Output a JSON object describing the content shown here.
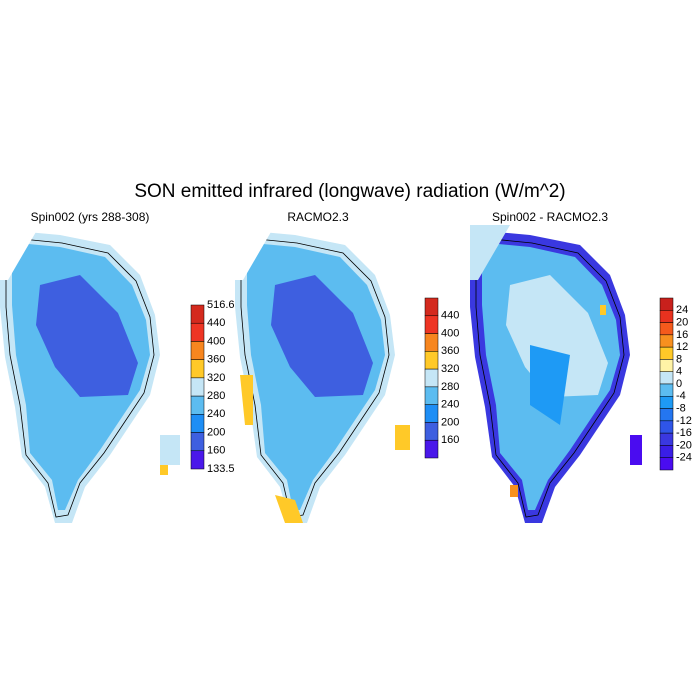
{
  "title": "SON emitted infrared (longwave) radiation (W/m^2)",
  "panels": [
    {
      "title": "Spin002 (yrs 288-308)",
      "colorbar": {
        "labels": [
          "516.6",
          "440",
          "400",
          "360",
          "320",
          "280",
          "240",
          "200",
          "160",
          "133.5"
        ],
        "colors": [
          "#d42a1e",
          "#ee3524",
          "#f7861f",
          "#ffc928",
          "#c5e6f6",
          "#5cbcf0",
          "#1e8ef5",
          "#3e5fe0",
          "#4a18ea"
        ]
      }
    },
    {
      "title": "RACMO2.3",
      "colorbar": {
        "labels": [
          "440",
          "400",
          "360",
          "320",
          "280",
          "240",
          "200",
          "160"
        ],
        "colors": [
          "#d42a1e",
          "#ee3524",
          "#f7861f",
          "#ffc928",
          "#c5e6f6",
          "#5cbcf0",
          "#1e8ef5",
          "#3e5fe0",
          "#4a18ea"
        ]
      }
    },
    {
      "title": "Spin002 - RACMO2.3",
      "colorbar": {
        "labels": [
          "24",
          "20",
          "16",
          "12",
          "8",
          "4",
          "0",
          "-4",
          "-8",
          "-12",
          "-16",
          "-20",
          "-24"
        ],
        "colors": [
          "#c8201c",
          "#e8321f",
          "#f55a1c",
          "#f7901f",
          "#ffc928",
          "#fff3a6",
          "#c5e6f6",
          "#5cbcf0",
          "#1e9af5",
          "#2476f0",
          "#2f55e8",
          "#3a38e0",
          "#3a1ee6",
          "#4a0cf0"
        ]
      }
    }
  ]
}
